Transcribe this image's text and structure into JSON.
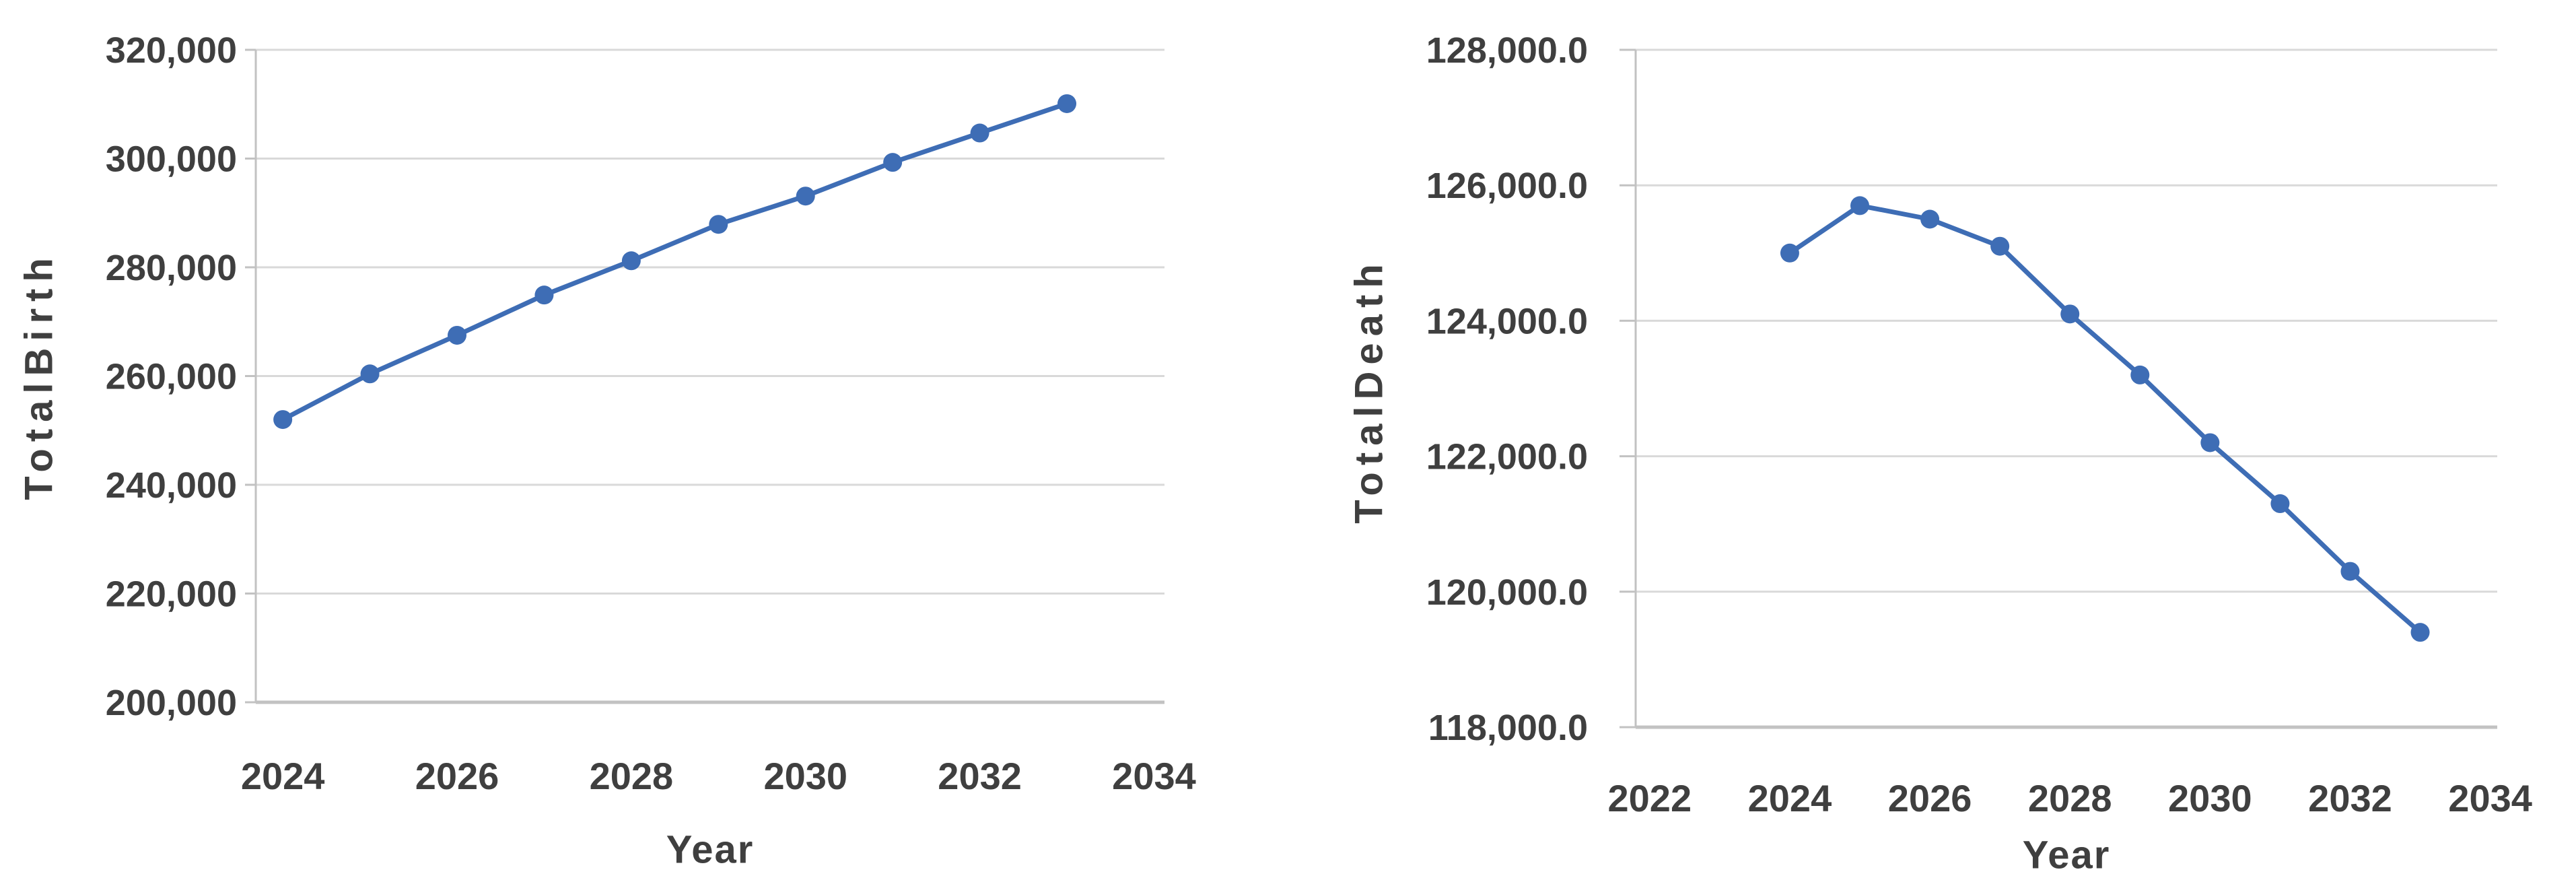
{
  "colors": {
    "series_blue": "#3e6db5",
    "gridline_gray": "#d9d9d9",
    "axis_gray": "#c2c2c2",
    "text_gray": "#3f3f3f",
    "background": "#ffffff"
  },
  "chart_data": [
    {
      "type": "line",
      "title": "",
      "xlabel": "Year",
      "ylabel": "TotalBirth",
      "x": [
        2024,
        2025,
        2026,
        2027,
        2028,
        2029,
        2030,
        2031,
        2032,
        2033
      ],
      "series": [
        {
          "name": "TotalBirth",
          "values": [
            252000,
            260400,
            267500,
            274900,
            281200,
            287900,
            293100,
            299300,
            304700,
            310100
          ],
          "marker": "circle"
        }
      ],
      "xlim": [
        2023.69,
        2034.12
      ],
      "ylim": [
        200000,
        320000
      ],
      "xticks": [
        2024,
        2026,
        2028,
        2030,
        2032,
        2034
      ],
      "xtick_labels": [
        "2024",
        "2026",
        "2028",
        "2030",
        "2032",
        "2034"
      ],
      "yticks": [
        320000,
        300000,
        280000,
        260000,
        240000,
        220000,
        200000
      ],
      "ytick_labels": [
        "320,000",
        "300,000",
        "280,000",
        "260,000",
        "240,000",
        "220,000",
        "200,000"
      ],
      "grid": "horizontal",
      "legend_position": "none"
    },
    {
      "type": "line",
      "title": "",
      "xlabel": "Year",
      "ylabel": "TotalDeath",
      "x": [
        2024,
        2025,
        2026,
        2027,
        2028,
        2029,
        2030,
        2031,
        2032,
        2033
      ],
      "series": [
        {
          "name": "TotalDeath",
          "values": [
            125000,
            125700,
            125500,
            125100,
            124100,
            123200,
            122200,
            121300,
            120300,
            119400
          ],
          "marker": "circle"
        }
      ],
      "xlim": [
        2021.8,
        2034.1
      ],
      "ylim": [
        118000,
        128000
      ],
      "xticks": [
        2022,
        2024,
        2026,
        2028,
        2030,
        2032,
        2034
      ],
      "xtick_labels": [
        "2022",
        "2024",
        "2026",
        "2028",
        "2030",
        "2032",
        "2034"
      ],
      "yticks": [
        128000,
        126000,
        124000,
        122000,
        120000,
        118000
      ],
      "ytick_labels": [
        "128,000.0",
        "126,000.0",
        "124,000.0",
        "122,000.0",
        "120,000.0",
        "118,000.0"
      ],
      "grid": "horizontal",
      "legend_position": "none"
    }
  ]
}
